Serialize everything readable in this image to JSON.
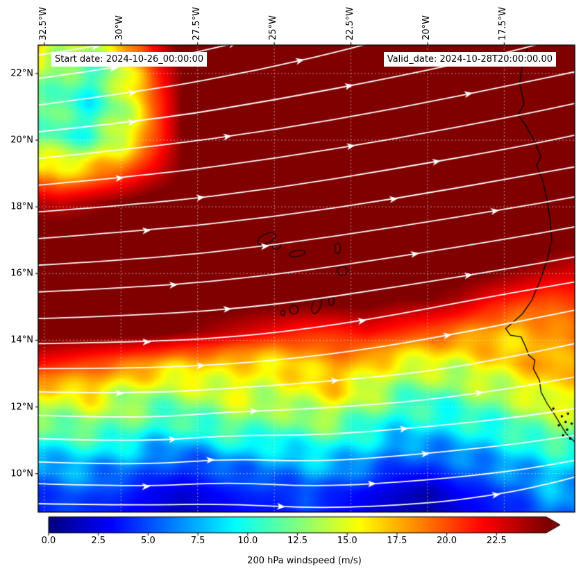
{
  "figure": {
    "annotations": {
      "start_date": "Start date: 2024-10-26_00:00:00",
      "valid_date": "Valid_date: 2024-10-28T20:00:00.00"
    },
    "axes": {
      "x_ticks": [
        {
          "value": -32.5,
          "label": "32.5°W"
        },
        {
          "value": -30.0,
          "label": "30°W"
        },
        {
          "value": -27.5,
          "label": "27.5°W"
        },
        {
          "value": -25.0,
          "label": "25°W"
        },
        {
          "value": -22.5,
          "label": "22.5°W"
        },
        {
          "value": -20.0,
          "label": "20°W"
        },
        {
          "value": -17.5,
          "label": "17.5°W"
        }
      ],
      "y_ticks": [
        {
          "value": 22,
          "label": "22°N"
        },
        {
          "value": 20,
          "label": "20°N"
        },
        {
          "value": 18,
          "label": "18°N"
        },
        {
          "value": 16,
          "label": "16°N"
        },
        {
          "value": 14,
          "label": "14°N"
        },
        {
          "value": 12,
          "label": "12°N"
        },
        {
          "value": 10,
          "label": "10°N"
        }
      ],
      "lon_range": [
        -32.7,
        -15.2
      ],
      "lat_range": [
        8.85,
        22.85
      ]
    },
    "colorbar": {
      "label": "200 hPa windspeed (m/s)",
      "ticks": [
        0,
        2.5,
        5,
        7.5,
        10,
        12.5,
        15,
        17.5,
        20,
        22.5
      ],
      "tick_labels": [
        "0.0",
        "2.5",
        "5.0",
        "7.5",
        "10.0",
        "12.5",
        "15.0",
        "17.5",
        "20.0",
        "22.5"
      ],
      "vmin": 0,
      "vmax": 25,
      "extend": "max",
      "colormap": "jet"
    },
    "colors": {
      "streamline": "#ffffff",
      "coastline": "#000000",
      "gridline": "rgba(230,230,230,0.65)",
      "max_color": "#800000"
    }
  },
  "chart_data": {
    "type": "heatmap",
    "title": "200 hPa windspeed with streamlines",
    "units": "m/s",
    "lon": [
      -33,
      -32,
      -31,
      -30,
      -29,
      -28,
      -27,
      -26,
      -25,
      -24,
      -23,
      -22,
      -21,
      -20,
      -19,
      -18,
      -17,
      -16,
      -15
    ],
    "lat": [
      23.0,
      22.03,
      21.07,
      20.1,
      19.13,
      18.17,
      17.2,
      16.23,
      15.27,
      14.3,
      13.33,
      12.37,
      11.4,
      10.43,
      9.47,
      8.5
    ],
    "windspeed": [
      [
        19,
        15,
        14,
        17,
        22,
        26,
        26,
        26,
        26,
        26,
        26,
        26,
        26,
        26,
        26,
        26,
        26,
        26,
        26
      ],
      [
        15,
        12,
        11,
        14,
        20,
        25,
        26,
        26,
        26,
        26,
        26,
        26,
        26,
        26,
        26,
        26,
        26,
        26,
        26
      ],
      [
        13,
        11,
        10,
        13,
        19,
        25,
        26,
        26,
        26,
        26,
        26,
        26,
        26,
        26,
        26,
        26,
        26,
        26,
        26
      ],
      [
        13,
        11,
        11,
        14,
        19,
        25,
        26,
        26,
        26,
        26,
        26,
        26,
        26,
        26,
        26,
        26,
        26,
        26,
        26
      ],
      [
        17,
        16,
        17,
        19,
        22,
        25,
        26,
        26,
        26,
        26,
        26,
        26,
        26,
        26,
        26,
        26,
        26,
        26,
        26
      ],
      [
        24,
        23,
        24,
        25,
        26,
        26,
        26,
        26,
        26,
        26,
        26,
        26,
        26,
        26,
        26,
        26,
        26,
        26,
        26
      ],
      [
        26,
        26,
        26,
        26,
        26,
        26,
        26,
        26,
        26,
        26,
        26,
        26,
        26,
        26,
        26,
        26,
        26,
        26,
        26
      ],
      [
        26,
        26,
        26,
        26,
        26,
        26,
        26,
        26,
        26,
        26,
        26,
        26,
        26,
        26,
        26,
        26,
        25,
        24,
        23
      ],
      [
        26,
        26,
        26,
        26,
        26,
        26,
        26,
        26,
        26,
        26,
        26,
        26,
        25,
        25,
        24,
        22,
        21,
        20,
        21
      ],
      [
        26,
        26,
        26,
        26,
        26,
        25,
        24,
        23,
        22,
        21,
        21,
        22,
        21,
        20,
        19,
        18,
        17,
        18,
        19
      ],
      [
        22,
        21,
        20,
        19,
        18,
        17,
        17,
        16,
        16,
        17,
        18,
        17,
        15,
        15,
        15,
        16,
        17,
        18,
        17
      ],
      [
        15,
        15,
        16,
        14,
        13,
        13,
        14,
        15,
        14,
        15,
        16,
        14,
        12,
        11,
        12,
        13,
        14,
        16,
        15
      ],
      [
        11,
        12,
        12,
        12,
        10,
        10,
        11,
        12,
        11,
        12,
        12,
        10,
        9,
        9,
        9,
        10,
        11,
        13,
        12
      ],
      [
        7,
        8,
        8,
        7,
        6,
        5,
        6,
        7,
        7,
        8,
        8,
        7,
        5,
        5,
        6,
        7,
        8,
        9,
        9
      ],
      [
        4,
        5,
        5,
        4,
        3,
        2,
        3,
        4,
        4,
        5,
        4,
        3,
        2,
        1,
        3,
        4,
        5,
        7,
        7
      ],
      [
        3,
        4,
        4,
        3,
        2,
        1,
        2,
        3,
        3,
        4,
        3,
        2,
        1,
        1,
        2,
        3,
        4,
        6,
        6
      ]
    ],
    "streamlines": [
      {
        "p": [
          [
            -32.7,
            22.55
          ],
          [
            -30.5,
            22.85
          ],
          [
            -28.6,
            23.3
          ]
        ],
        "a": [
          0.45
        ]
      },
      {
        "p": [
          [
            -32.7,
            21.85
          ],
          [
            -29.5,
            22.25
          ],
          [
            -26.5,
            22.85
          ],
          [
            -24.6,
            23.3
          ]
        ],
        "a": [
          0.3,
          0.78
        ]
      },
      {
        "p": [
          [
            -32.7,
            21.05
          ],
          [
            -29.0,
            21.5
          ],
          [
            -25.5,
            22.1
          ],
          [
            -22.0,
            22.85
          ],
          [
            -20.6,
            23.3
          ]
        ],
        "a": [
          0.25,
          0.7
        ]
      },
      {
        "p": [
          [
            -32.7,
            20.25
          ],
          [
            -29.0,
            20.6
          ],
          [
            -25.0,
            21.2
          ],
          [
            -21.0,
            21.9
          ],
          [
            -17.5,
            22.6
          ],
          [
            -15.9,
            23.0
          ]
        ],
        "a": [
          0.18,
          0.6
        ]
      },
      {
        "p": [
          [
            -32.7,
            19.45
          ],
          [
            -29.0,
            19.8
          ],
          [
            -25.0,
            20.3
          ],
          [
            -21.0,
            20.95
          ],
          [
            -17.0,
            21.7
          ],
          [
            -15.2,
            22.05
          ]
        ],
        "a": [
          0.35,
          0.8
        ]
      },
      {
        "p": [
          [
            -32.7,
            18.65
          ],
          [
            -29.0,
            18.95
          ],
          [
            -25.0,
            19.45
          ],
          [
            -21.0,
            20.05
          ],
          [
            -17.0,
            20.75
          ],
          [
            -15.2,
            21.1
          ]
        ],
        "a": [
          0.15,
          0.58
        ]
      },
      {
        "p": [
          [
            -32.7,
            17.85
          ],
          [
            -29.0,
            18.1
          ],
          [
            -25.0,
            18.55
          ],
          [
            -21.0,
            19.15
          ],
          [
            -17.0,
            19.8
          ],
          [
            -15.2,
            20.15
          ]
        ],
        "a": [
          0.3,
          0.74
        ]
      },
      {
        "p": [
          [
            -32.7,
            17.05
          ],
          [
            -29.0,
            17.3
          ],
          [
            -25.0,
            17.7
          ],
          [
            -21.0,
            18.25
          ],
          [
            -17.0,
            18.9
          ],
          [
            -15.2,
            19.2
          ]
        ],
        "a": [
          0.2,
          0.66
        ]
      },
      {
        "p": [
          [
            -32.7,
            16.25
          ],
          [
            -29.0,
            16.45
          ],
          [
            -25.0,
            16.85
          ],
          [
            -21.0,
            17.4
          ],
          [
            -17.0,
            18.0
          ],
          [
            -15.2,
            18.3
          ]
        ],
        "a": [
          0.42,
          0.85
        ]
      },
      {
        "p": [
          [
            -32.7,
            15.45
          ],
          [
            -29.0,
            15.6
          ],
          [
            -25.0,
            15.95
          ],
          [
            -21.0,
            16.5
          ],
          [
            -17.0,
            17.1
          ],
          [
            -15.2,
            17.4
          ]
        ],
        "a": [
          0.25,
          0.7
        ]
      },
      {
        "p": [
          [
            -32.7,
            14.65
          ],
          [
            -29.0,
            14.75
          ],
          [
            -25.0,
            15.05
          ],
          [
            -21.0,
            15.6
          ],
          [
            -17.0,
            16.2
          ],
          [
            -15.2,
            16.5
          ]
        ],
        "a": [
          0.35,
          0.8
        ]
      },
      {
        "p": [
          [
            -32.7,
            13.9
          ],
          [
            -29.0,
            13.95
          ],
          [
            -25.5,
            14.15
          ],
          [
            -22.0,
            14.6
          ],
          [
            -18.0,
            15.3
          ],
          [
            -15.2,
            15.75
          ]
        ],
        "a": [
          0.2,
          0.6
        ]
      },
      {
        "p": [
          [
            -32.7,
            13.15
          ],
          [
            -29.5,
            13.15
          ],
          [
            -26.0,
            13.3
          ],
          [
            -22.5,
            13.65
          ],
          [
            -19.0,
            14.2
          ],
          [
            -15.2,
            14.9
          ]
        ],
        "a": [
          0.3,
          0.76
        ]
      },
      {
        "p": [
          [
            -32.7,
            12.45
          ],
          [
            -29.5,
            12.4
          ],
          [
            -26.5,
            12.55
          ],
          [
            -23.5,
            12.75
          ],
          [
            -20.0,
            13.05
          ],
          [
            -17.0,
            13.55
          ],
          [
            -15.2,
            13.9
          ]
        ],
        "a": [
          0.15,
          0.55
        ]
      },
      {
        "p": [
          [
            -32.7,
            11.75
          ],
          [
            -29.5,
            11.65
          ],
          [
            -26.5,
            11.85
          ],
          [
            -23.5,
            11.95
          ],
          [
            -20.0,
            12.2
          ],
          [
            -17.0,
            12.6
          ],
          [
            -15.2,
            12.9
          ]
        ],
        "a": [
          0.4,
          0.82
        ]
      },
      {
        "p": [
          [
            -32.7,
            11.05
          ],
          [
            -29.5,
            10.95
          ],
          [
            -26.5,
            11.15
          ],
          [
            -23.5,
            11.15
          ],
          [
            -20.0,
            11.4
          ],
          [
            -17.0,
            11.7
          ],
          [
            -15.2,
            11.95
          ]
        ],
        "a": [
          0.25,
          0.68
        ]
      },
      {
        "p": [
          [
            -32.7,
            10.35
          ],
          [
            -29.5,
            10.25
          ],
          [
            -26.5,
            10.45
          ],
          [
            -23.5,
            10.35
          ],
          [
            -20.0,
            10.6
          ],
          [
            -17.0,
            10.9
          ],
          [
            -15.2,
            11.15
          ]
        ],
        "a": [
          0.32,
          0.72
        ]
      },
      {
        "p": [
          [
            -32.7,
            9.7
          ],
          [
            -29.5,
            9.6
          ],
          [
            -26.5,
            9.75
          ],
          [
            -23.5,
            9.6
          ],
          [
            -20.0,
            9.8
          ],
          [
            -17.0,
            10.1
          ],
          [
            -15.2,
            10.4
          ]
        ],
        "a": [
          0.2,
          0.62
        ]
      },
      {
        "p": [
          [
            -32.7,
            9.1
          ],
          [
            -29.5,
            9.05
          ],
          [
            -26.5,
            9.1
          ],
          [
            -23.5,
            8.95
          ],
          [
            -20.0,
            9.1
          ],
          [
            -17.5,
            9.4
          ],
          [
            -15.8,
            9.75
          ],
          [
            -15.2,
            9.9
          ]
        ],
        "a": [
          0.45,
          0.85
        ]
      }
    ],
    "coastline": [
      [
        -16.7,
        22.9
      ],
      [
        -16.9,
        22.3
      ],
      [
        -17.0,
        21.7
      ],
      [
        -16.85,
        21.1
      ],
      [
        -17.05,
        20.75
      ],
      [
        -16.8,
        20.45
      ],
      [
        -16.5,
        19.95
      ],
      [
        -16.3,
        19.5
      ],
      [
        -16.45,
        19.25
      ],
      [
        -16.25,
        18.8
      ],
      [
        -16.1,
        18.2
      ],
      [
        -16.0,
        17.6
      ],
      [
        -15.95,
        17.0
      ],
      [
        -16.1,
        16.4
      ],
      [
        -16.35,
        15.75
      ],
      [
        -16.6,
        15.2
      ],
      [
        -16.9,
        14.8
      ],
      [
        -17.2,
        14.55
      ],
      [
        -17.45,
        14.35
      ],
      [
        -17.3,
        14.15
      ],
      [
        -16.95,
        14.1
      ],
      [
        -16.8,
        13.8
      ],
      [
        -16.7,
        13.55
      ],
      [
        -16.5,
        13.4
      ],
      [
        -16.55,
        13.15
      ],
      [
        -16.35,
        12.8
      ],
      [
        -16.3,
        12.45
      ],
      [
        -16.1,
        12.1
      ],
      [
        -15.88,
        11.8
      ],
      [
        -15.68,
        11.5
      ],
      [
        -15.48,
        11.2
      ],
      [
        -15.2,
        10.95
      ]
    ],
    "islands": [
      {
        "c": [
          -25.25,
          17.05
        ],
        "rx": 0.32,
        "ry": 0.14,
        "rot": -25
      },
      {
        "c": [
          -24.93,
          16.82
        ],
        "rx": 0.14,
        "ry": 0.09,
        "rot": -15
      },
      {
        "c": [
          -24.25,
          16.6
        ],
        "rx": 0.26,
        "ry": 0.09,
        "rot": -10
      },
      {
        "c": [
          -22.93,
          16.76
        ],
        "rx": 0.09,
        "ry": 0.16,
        "rot": 0
      },
      {
        "c": [
          -22.78,
          16.08
        ],
        "rx": 0.17,
        "ry": 0.13,
        "rot": 0
      },
      {
        "c": [
          -23.14,
          15.18
        ],
        "rx": 0.09,
        "ry": 0.13,
        "rot": 0
      },
      {
        "c": [
          -23.62,
          15.05
        ],
        "rx": 0.14,
        "ry": 0.26,
        "rot": 20
      },
      {
        "c": [
          -24.36,
          14.92
        ],
        "rx": 0.14,
        "ry": 0.13,
        "rot": 0
      },
      {
        "c": [
          -24.72,
          14.82
        ],
        "rx": 0.07,
        "ry": 0.07,
        "rot": 0
      }
    ],
    "islets": [
      [
        -15.9,
        11.95
      ],
      [
        -15.62,
        11.72
      ],
      [
        -15.5,
        11.55
      ],
      [
        -15.72,
        11.45
      ],
      [
        -15.45,
        11.32
      ],
      [
        -15.58,
        11.15
      ],
      [
        -15.35,
        11.05
      ],
      [
        -15.3,
        11.5
      ],
      [
        -15.42,
        11.8
      ]
    ]
  }
}
